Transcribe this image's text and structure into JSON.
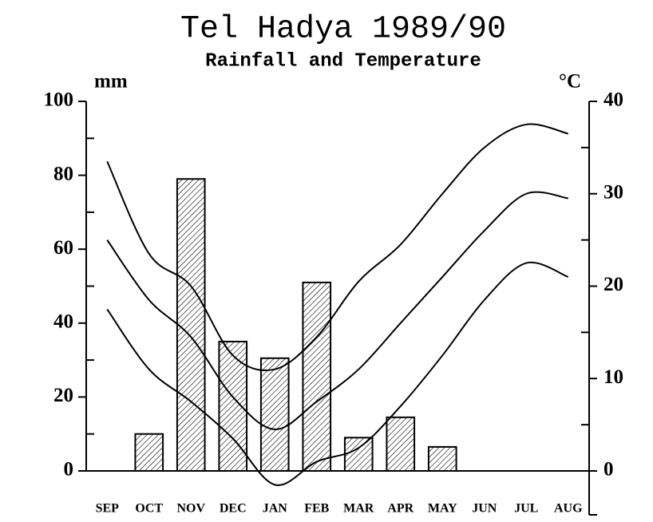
{
  "chart_data": {
    "type": "bar",
    "title": "Tel Hadya 1989/90",
    "subtitle": "Rainfall and Temperature",
    "y_label": "mm",
    "y2_label": "°C",
    "categories": [
      "SEP",
      "OCT",
      "NOV",
      "DEC",
      "JAN",
      "FEB",
      "MAR",
      "APR",
      "MAY",
      "JUN",
      "JUL",
      "AUG"
    ],
    "values": [
      0,
      10,
      79,
      35,
      30.5,
      51,
      9,
      14.5,
      6.5,
      0,
      0,
      0
    ],
    "color": "#000000",
    "ylim": [
      0,
      100
    ],
    "yticks": [
      0,
      20,
      40,
      60,
      80,
      100
    ],
    "yminorticks": [
      10,
      30,
      50,
      70,
      90
    ],
    "y2lim": [
      0,
      40
    ],
    "y2ticks": [
      0,
      10,
      20,
      30,
      40
    ],
    "y2minorticks": [
      5,
      15,
      25,
      35
    ],
    "lines": [
      {
        "axis": "y2",
        "color": "#000000",
        "values": [
          33.5,
          23.5,
          20,
          12.5,
          11,
          14.5,
          20.5,
          24.5,
          30,
          35,
          37.5,
          36.5
        ]
      },
      {
        "axis": "y2",
        "color": "#000000",
        "values": [
          25,
          18.5,
          14.5,
          8,
          4.5,
          7.5,
          11,
          16,
          21,
          26,
          30,
          29.5
        ]
      },
      {
        "axis": "y2",
        "color": "#000000",
        "values": [
          17.5,
          11,
          7.5,
          3.5,
          -1.5,
          1,
          2.5,
          7,
          12.5,
          18.5,
          22.5,
          21
        ]
      }
    ]
  }
}
